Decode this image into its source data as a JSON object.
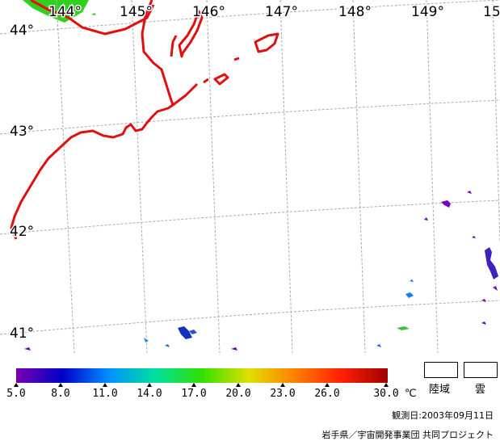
{
  "map": {
    "longitude_labels": [
      "144°",
      "145°",
      "146°",
      "147°",
      "148°",
      "149°",
      "15"
    ],
    "latitude_labels": [
      "44°",
      "43°",
      "42°",
      "41°"
    ],
    "coastline_color": "#e01010",
    "land_color": "#30c020",
    "grid_color": "#aaaaaa"
  },
  "legend": {
    "tick_labels": [
      "5.0",
      "8.0",
      "11.0",
      "14.0",
      "17.0",
      "20.0",
      "23.0",
      "26.0",
      "30.0"
    ],
    "unit": "℃",
    "land_label": "陸域",
    "cloud_label": "雲",
    "colorbar_stops": [
      "#7a00b0",
      "#0000c8",
      "#0090ff",
      "#00e0a0",
      "#30e000",
      "#e0e000",
      "#ff8000",
      "#ff2000",
      "#a00000"
    ]
  },
  "observation_date": "観測日:2003年09月11日",
  "credit": "岩手県／宇宙開発事業団 共同プロジェクト"
}
